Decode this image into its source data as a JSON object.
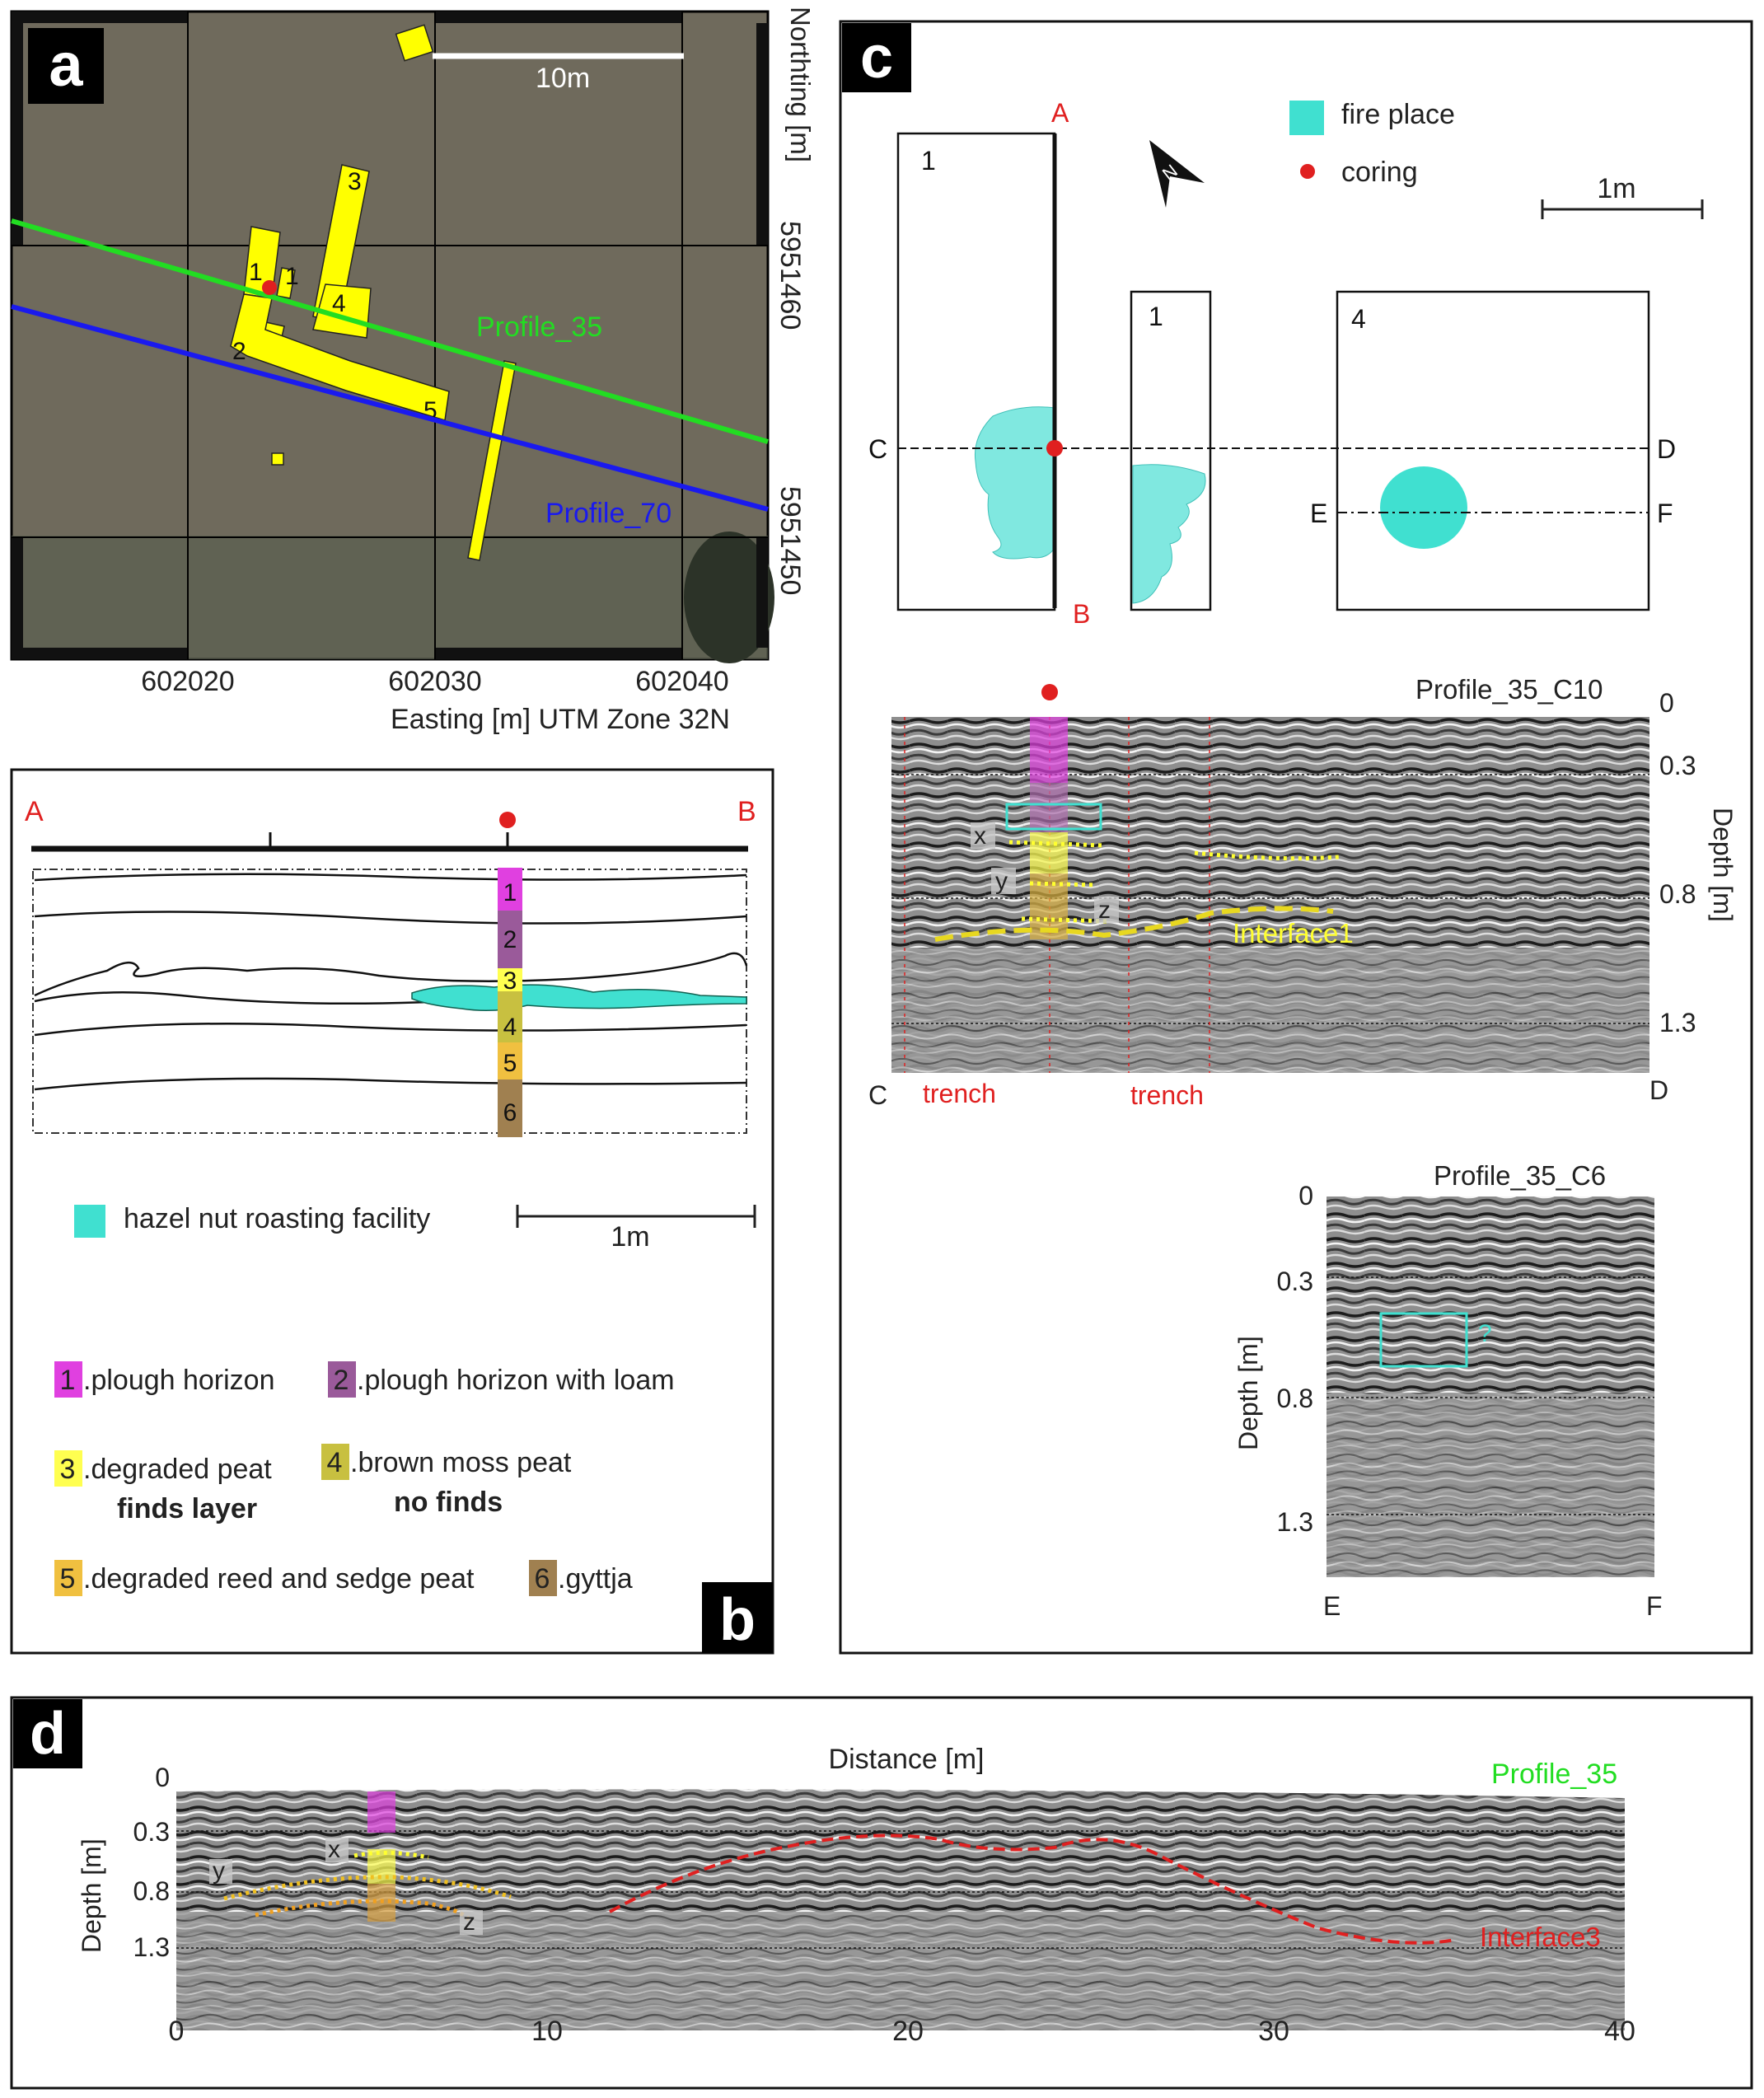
{
  "colors": {
    "yellow": "#ffff00",
    "green": "#22dd22",
    "blue": "#1a1aee",
    "red": "#e02020",
    "cyan": "#40e0d0",
    "dark": "#111111"
  },
  "panel_a": {
    "badge": "a",
    "scale_label": "10m",
    "northing_label": "Northting [m]",
    "north_ticks": [
      "5951460",
      "5951450"
    ],
    "east_ticks": [
      "602020",
      "602030",
      "602040"
    ],
    "easting_label": "Easting [m] UTM Zone 32N",
    "profile_green": "Profile_35",
    "profile_blue": "Profile_70",
    "trench_labels": [
      "1",
      "1",
      "2",
      "3",
      "4",
      "5"
    ]
  },
  "panel_b": {
    "badge": "b",
    "point_a": "A",
    "point_b": "B",
    "layer_numbers": [
      "1",
      "2",
      "3",
      "4",
      "5",
      "6"
    ],
    "legend_facility": "hazel nut roasting facility",
    "scale_label": "1m",
    "layers": [
      {
        "num": "1",
        "text": ".plough horizon",
        "color": "#e040e0"
      },
      {
        "num": "2",
        "text": ".plough horizon with loam",
        "color": "#9a5a9a"
      },
      {
        "num": "3",
        "text": ".degraded peat",
        "sub": "finds layer",
        "color": "#ffff50"
      },
      {
        "num": "4",
        "text": ".brown moss peat",
        "sub": "no finds",
        "color": "#c8c040"
      },
      {
        "num": "5",
        "text": ".degraded reed and sedge peat",
        "color": "#f0c040"
      },
      {
        "num": "6",
        "text": ".gyttja",
        "color": "#a08050"
      }
    ]
  },
  "panel_c": {
    "badge": "c",
    "legend_fire": "fire place",
    "legend_coring": "coring",
    "scale_label": "1m",
    "box_labels": [
      "1",
      "1",
      "4"
    ],
    "points": {
      "A": "A",
      "B": "B",
      "C": "C",
      "D": "D",
      "E": "E",
      "F": "F"
    },
    "north_label": "N",
    "profile_c10": {
      "title": "Profile_35_C10",
      "depth_ticks": [
        "0",
        "0.3",
        "0.8",
        "1.3"
      ],
      "depth_label": "Depth [m]",
      "trench_labels": [
        "trench",
        "trench"
      ],
      "letters": [
        "x",
        "y",
        "z"
      ],
      "interface": "Interface1",
      "left": "C",
      "right": "D"
    },
    "profile_c6": {
      "title": "Profile_35_C6",
      "depth_ticks": [
        "0",
        "0.3",
        "0.8",
        "1.3"
      ],
      "depth_label": "Depth [m]",
      "question": "?",
      "left": "E",
      "right": "F"
    }
  },
  "panel_d": {
    "badge": "d",
    "title": "Distance [m]",
    "profile": "Profile_35",
    "depth_label": "Depth [m]",
    "depth_ticks": [
      "0",
      "0.3",
      "0.8",
      "1.3"
    ],
    "distance_ticks": [
      "0",
      "10",
      "20",
      "30",
      "40"
    ],
    "letters": [
      "x",
      "y",
      "z"
    ],
    "interface": "Interface3"
  }
}
